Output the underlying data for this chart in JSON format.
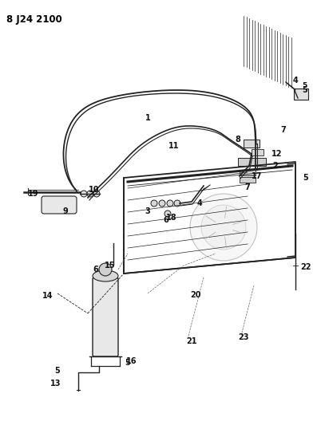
{
  "title": "8 J242100",
  "background_color": "#ffffff",
  "line_color": "#000000",
  "fig_width": 3.97,
  "fig_height": 5.33,
  "dpi": 100
}
